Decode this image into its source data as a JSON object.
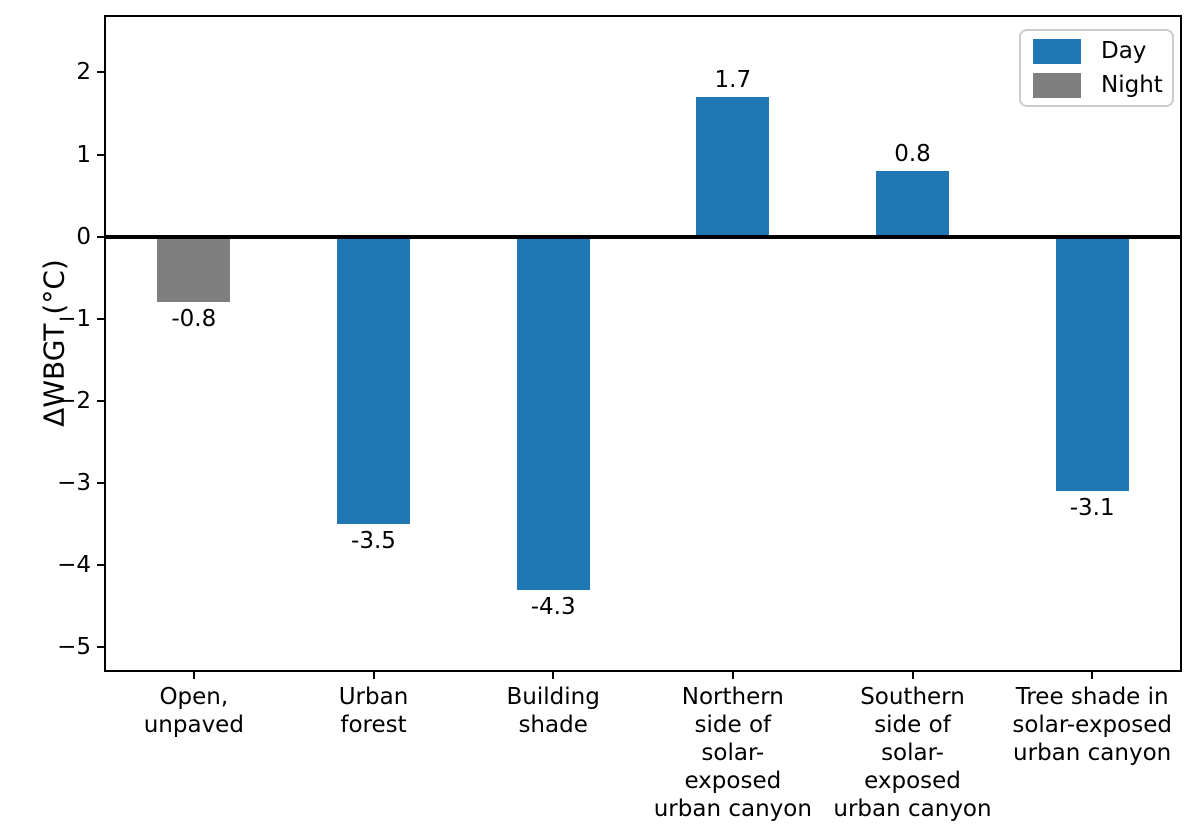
{
  "chart_data": {
    "type": "bar",
    "title": "",
    "xlabel": "",
    "ylabel": "ΔWBGT (°C)",
    "ylim": [
      -5.3,
      2.7
    ],
    "grid": false,
    "zero_line": true,
    "yticks": [
      {
        "value": 2,
        "label": "2"
      },
      {
        "value": 1,
        "label": "1"
      },
      {
        "value": 0,
        "label": "0"
      },
      {
        "value": -1,
        "label": "−1"
      },
      {
        "value": -2,
        "label": "−2"
      },
      {
        "value": -3,
        "label": "−3"
      },
      {
        "value": -4,
        "label": "−4"
      },
      {
        "value": -5,
        "label": "−5"
      }
    ],
    "categories": [
      "Open,\nunpaved",
      "Urban\nforest",
      "Building\nshade",
      "Northern\nside of\nsolar-\nexposed\nurban canyon",
      "Southern\nside of\nsolar-\nexposed\nurban canyon",
      "Tree shade in\nsolar-exposed\nurban canyon"
    ],
    "bars": [
      {
        "category": "Open,\nunpaved",
        "value": -0.8,
        "label": "-0.8",
        "series": "Night"
      },
      {
        "category": "Urban\nforest",
        "value": -3.5,
        "label": "-3.5",
        "series": "Day"
      },
      {
        "category": "Building\nshade",
        "value": -4.3,
        "label": "-4.3",
        "series": "Day"
      },
      {
        "category": "Northern\nside of\nsolar-\nexposed\nurban canyon",
        "value": 1.7,
        "label": "1.7",
        "series": "Day"
      },
      {
        "category": "Southern\nside of\nsolar-\nexposed\nurban canyon",
        "value": 0.8,
        "label": "0.8",
        "series": "Day"
      },
      {
        "category": "Tree shade in\nsolar-exposed\nurban canyon",
        "value": -3.1,
        "label": "-3.1",
        "series": "Day"
      }
    ],
    "series_colors": {
      "Day": "#1f77b4",
      "Night": "#7f7f7f"
    },
    "legend": {
      "position": "upper right",
      "entries": [
        {
          "label": "Day",
          "color": "#1f77b4"
        },
        {
          "label": "Night",
          "color": "#7f7f7f"
        }
      ]
    }
  }
}
